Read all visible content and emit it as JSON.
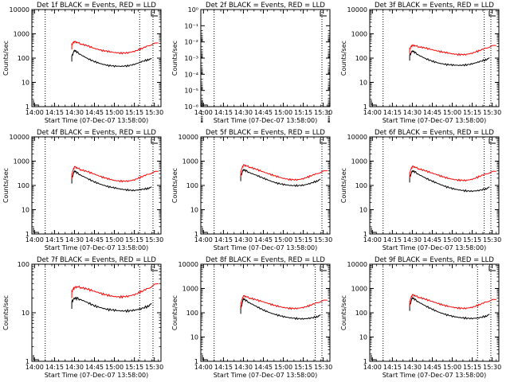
{
  "figure": {
    "background": "#ffffff",
    "axis_color": "#000000"
  },
  "chart_data": [
    {
      "id": "det1",
      "type": "line",
      "title": "Det 1f BLACK = Events, RED = LLD",
      "xlabel": "Start Time (07-Dec-07 13:58:00)",
      "ylabel": "Counts/sec",
      "yscale": "log",
      "ylim": [
        1,
        10000
      ],
      "yticks": [
        "1",
        "10",
        "100",
        "1000",
        "10000"
      ],
      "xlim": [
        838,
        935
      ],
      "xtick_values": [
        840,
        855,
        870,
        885,
        900,
        915,
        930
      ],
      "xticks": [
        "14:00",
        "14:15",
        "14:30",
        "14:45",
        "15:00",
        "15:15",
        "15:30"
      ],
      "vlines": [
        848,
        919,
        929
      ],
      "series": [
        {
          "color": "#000000",
          "x": [
            868,
            870,
            872,
            875,
            880,
            885,
            890,
            895,
            900,
            905,
            910,
            915,
            920,
            925,
            928
          ],
          "y": [
            120,
            210,
            175,
            135,
            95,
            72,
            58,
            50,
            47,
            46,
            48,
            55,
            70,
            85,
            95
          ]
        },
        {
          "color": "#ff0000",
          "x": [
            868,
            870,
            872,
            875,
            880,
            885,
            890,
            895,
            900,
            905,
            910,
            915,
            920,
            925,
            933
          ],
          "y": [
            380,
            480,
            440,
            380,
            320,
            250,
            210,
            190,
            170,
            160,
            165,
            190,
            240,
            320,
            420
          ]
        }
      ]
    },
    {
      "id": "det2",
      "type": "line",
      "title": "Det 2f BLACK = Events, RED = LLD",
      "xlabel": "Start Time (07-Dec-07 13:58:00)",
      "ylabel": "Counts/sec",
      "yscale": "log",
      "ylim": [
        1,
        1e-06
      ],
      "yticks": [
        "10⁻⁶",
        "10⁻⁵",
        "10⁻⁴",
        "10⁻³",
        "10⁻²",
        "10⁻¹",
        "10⁰"
      ],
      "xlim": [
        838,
        935
      ],
      "xtick_values": [
        840,
        855,
        870,
        885,
        900,
        915,
        930
      ],
      "xticks": [
        "14:00",
        "14:15",
        "14:30",
        "14:45",
        "15:00",
        "15:15",
        "15:30"
      ],
      "vlines": [
        848,
        929
      ],
      "series": []
    },
    {
      "id": "det3",
      "type": "line",
      "title": "Det 3f BLACK = Events, RED = LLD",
      "xlabel": "Start Time (07-Dec-07 13:58:00)",
      "ylabel": "Counts/sec",
      "yscale": "log",
      "ylim": [
        1,
        10000
      ],
      "yticks": [
        "1",
        "10",
        "100",
        "1000",
        "10000"
      ],
      "xlim": [
        838,
        935
      ],
      "xtick_values": [
        840,
        855,
        870,
        885,
        900,
        915,
        930
      ],
      "xticks": [
        "14:00",
        "14:15",
        "14:30",
        "14:45",
        "15:00",
        "15:15",
        "15:30"
      ],
      "vlines": [
        848,
        924,
        929
      ],
      "series": [
        {
          "color": "#000000",
          "x": [
            868,
            870,
            872,
            875,
            880,
            885,
            890,
            895,
            900,
            905,
            910,
            915,
            920,
            925,
            928
          ],
          "y": [
            130,
            200,
            170,
            130,
            95,
            75,
            62,
            55,
            52,
            50,
            52,
            58,
            70,
            85,
            100
          ]
        },
        {
          "color": "#ff0000",
          "x": [
            868,
            870,
            872,
            875,
            880,
            885,
            890,
            895,
            900,
            905,
            910,
            915,
            920,
            925,
            933
          ],
          "y": [
            250,
            340,
            320,
            290,
            260,
            220,
            190,
            170,
            150,
            140,
            140,
            160,
            200,
            260,
            330
          ]
        }
      ]
    },
    {
      "id": "det4",
      "type": "line",
      "title": "Det 4f BLACK = Events, RED = LLD",
      "xlabel": "Start Time (07-Dec-07 13:58:00)",
      "ylabel": "Counts/sec",
      "yscale": "log",
      "ylim": [
        1,
        10000
      ],
      "yticks": [
        "1",
        "10",
        "100",
        "1000",
        "10000"
      ],
      "xlim": [
        838,
        935
      ],
      "xtick_values": [
        840,
        855,
        870,
        885,
        900,
        915,
        930
      ],
      "xticks": [
        "14:00",
        "14:15",
        "14:30",
        "14:45",
        "15:00",
        "15:15",
        "15:30"
      ],
      "vlines": [
        848,
        919,
        929
      ],
      "series": [
        {
          "color": "#000000",
          "x": [
            868,
            870,
            872,
            875,
            880,
            885,
            890,
            895,
            900,
            905,
            910,
            915,
            920,
            925,
            928
          ],
          "y": [
            200,
            400,
            330,
            260,
            190,
            140,
            110,
            90,
            80,
            70,
            65,
            62,
            68,
            75,
            85
          ]
        },
        {
          "color": "#ff0000",
          "x": [
            868,
            870,
            872,
            875,
            880,
            885,
            890,
            895,
            900,
            905,
            910,
            915,
            920,
            925,
            933
          ],
          "y": [
            300,
            600,
            520,
            440,
            370,
            290,
            230,
            190,
            160,
            150,
            150,
            170,
            220,
            290,
            380
          ]
        }
      ]
    },
    {
      "id": "det5",
      "type": "line",
      "title": "Det 5f BLACK = Events, RED = LLD",
      "xlabel": "Start Time (07-Dec-07 13:58:00)",
      "ylabel": "Counts/sec",
      "yscale": "log",
      "ylim": [
        1,
        10000
      ],
      "yticks": [
        "1",
        "10",
        "100",
        "1000",
        "10000"
      ],
      "xlim": [
        838,
        935
      ],
      "xtick_values": [
        840,
        855,
        870,
        885,
        900,
        915,
        930
      ],
      "xticks": [
        "14:00",
        "14:15",
        "14:30",
        "14:45",
        "15:00",
        "15:15",
        "15:30"
      ],
      "vlines": [
        848,
        929
      ],
      "series": [
        {
          "color": "#000000",
          "x": [
            868,
            870,
            872,
            875,
            880,
            885,
            890,
            895,
            900,
            905,
            910,
            915,
            920,
            925,
            928
          ],
          "y": [
            250,
            450,
            400,
            330,
            260,
            200,
            155,
            125,
            110,
            100,
            98,
            102,
            120,
            150,
            180
          ]
        },
        {
          "color": "#ff0000",
          "x": [
            868,
            870,
            872,
            875,
            880,
            885,
            890,
            895,
            900,
            905,
            910,
            915,
            920,
            925,
            933
          ],
          "y": [
            380,
            700,
            640,
            560,
            460,
            360,
            290,
            235,
            195,
            175,
            170,
            190,
            240,
            310,
            400
          ]
        }
      ]
    },
    {
      "id": "det6",
      "type": "line",
      "title": "Det 6f BLACK = Events, RED = LLD",
      "xlabel": "Start Time (07-Dec-07 13:58:00)",
      "ylabel": "Counts/sec",
      "yscale": "log",
      "ylim": [
        1,
        10000
      ],
      "yticks": [
        "1",
        "10",
        "100",
        "1000",
        "10000"
      ],
      "xlim": [
        838,
        935
      ],
      "xtick_values": [
        840,
        855,
        870,
        885,
        900,
        915,
        930
      ],
      "xticks": [
        "14:00",
        "14:15",
        "14:30",
        "14:45",
        "15:00",
        "15:15",
        "15:30"
      ],
      "vlines": [
        848,
        924,
        929
      ],
      "series": [
        {
          "color": "#000000",
          "x": [
            868,
            870,
            872,
            875,
            880,
            885,
            890,
            895,
            900,
            905,
            910,
            915,
            920,
            925,
            928
          ],
          "y": [
            220,
            400,
            360,
            280,
            200,
            150,
            115,
            90,
            75,
            65,
            60,
            58,
            62,
            72,
            85
          ]
        },
        {
          "color": "#ff0000",
          "x": [
            868,
            870,
            872,
            875,
            880,
            885,
            890,
            895,
            900,
            905,
            910,
            915,
            920,
            925,
            933
          ],
          "y": [
            340,
            620,
            560,
            480,
            400,
            320,
            260,
            210,
            180,
            165,
            160,
            180,
            230,
            300,
            380
          ]
        }
      ]
    },
    {
      "id": "det7",
      "type": "line",
      "title": "Det 7f BLACK = Events, RED = LLD",
      "xlabel": "Start Time (07-Dec-07 13:58:00)",
      "ylabel": "Counts/sec",
      "yscale": "log",
      "ylim": [
        1,
        1000
      ],
      "yticks": [
        "1",
        "10",
        "100"
      ],
      "xlim": [
        838,
        935
      ],
      "xtick_values": [
        840,
        855,
        870,
        885,
        900,
        915,
        930
      ],
      "xticks": [
        "14:00",
        "14:15",
        "14:30",
        "14:45",
        "15:00",
        "15:15",
        "15:30"
      ],
      "vlines": [
        848,
        919,
        929
      ],
      "series": [
        {
          "color": "#000000",
          "x": [
            868,
            870,
            872,
            875,
            880,
            885,
            890,
            895,
            900,
            905,
            910,
            915,
            920,
            925,
            928
          ],
          "y": [
            70,
            90,
            88,
            80,
            65,
            52,
            45,
            40,
            38,
            36,
            36,
            38,
            42,
            50,
            60
          ]
        },
        {
          "color": "#ff0000",
          "x": [
            868,
            870,
            872,
            875,
            880,
            885,
            890,
            895,
            900,
            905,
            910,
            915,
            920,
            925,
            933
          ],
          "y": [
            150,
            190,
            200,
            190,
            170,
            145,
            125,
            110,
            100,
            98,
            102,
            115,
            140,
            180,
            250
          ]
        }
      ]
    },
    {
      "id": "det8",
      "type": "line",
      "title": "Det 8f BLACK = Events, RED = LLD",
      "xlabel": "Start Time (07-Dec-07 13:58:00)",
      "ylabel": "Counts/sec",
      "yscale": "log",
      "ylim": [
        1,
        10000
      ],
      "yticks": [
        "1",
        "10",
        "100",
        "1000",
        "10000"
      ],
      "xlim": [
        838,
        935
      ],
      "xtick_values": [
        840,
        855,
        870,
        885,
        900,
        915,
        930
      ],
      "xticks": [
        "14:00",
        "14:15",
        "14:30",
        "14:45",
        "15:00",
        "15:15",
        "15:30"
      ],
      "vlines": [
        848,
        924,
        929
      ],
      "series": [
        {
          "color": "#000000",
          "x": [
            868,
            870,
            872,
            875,
            880,
            885,
            890,
            895,
            900,
            905,
            910,
            915,
            920,
            925,
            928
          ],
          "y": [
            150,
            380,
            320,
            250,
            180,
            130,
            100,
            82,
            70,
            62,
            58,
            56,
            60,
            68,
            80
          ]
        },
        {
          "color": "#ff0000",
          "x": [
            868,
            870,
            872,
            875,
            880,
            885,
            890,
            895,
            900,
            905,
            910,
            915,
            920,
            925,
            933
          ],
          "y": [
            250,
            500,
            460,
            400,
            340,
            280,
            230,
            190,
            165,
            152,
            150,
            165,
            200,
            260,
            330
          ]
        }
      ]
    },
    {
      "id": "det9",
      "type": "line",
      "title": "Det 9f BLACK = Events, RED = LLD",
      "xlabel": "Start Time (07-Dec-07 13:58:00)",
      "ylabel": "Counts/sec",
      "yscale": "log",
      "ylim": [
        1,
        10000
      ],
      "yticks": [
        "1",
        "10",
        "100",
        "1000",
        "10000"
      ],
      "xlim": [
        838,
        935
      ],
      "xtick_values": [
        840,
        855,
        870,
        885,
        900,
        915,
        930
      ],
      "xticks": [
        "14:00",
        "14:15",
        "14:30",
        "14:45",
        "15:00",
        "15:15",
        "15:30"
      ],
      "vlines": [
        848,
        919,
        929
      ],
      "series": [
        {
          "color": "#000000",
          "x": [
            868,
            870,
            872,
            875,
            880,
            885,
            890,
            895,
            900,
            905,
            910,
            915,
            920,
            925,
            928
          ],
          "y": [
            200,
            420,
            350,
            270,
            190,
            140,
            105,
            85,
            72,
            64,
            60,
            58,
            62,
            72,
            85
          ]
        },
        {
          "color": "#ff0000",
          "x": [
            868,
            870,
            872,
            875,
            880,
            885,
            890,
            895,
            900,
            905,
            910,
            915,
            920,
            925,
            933
          ],
          "y": [
            300,
            560,
            500,
            430,
            360,
            290,
            235,
            195,
            170,
            155,
            152,
            168,
            210,
            280,
            350
          ]
        }
      ]
    }
  ]
}
